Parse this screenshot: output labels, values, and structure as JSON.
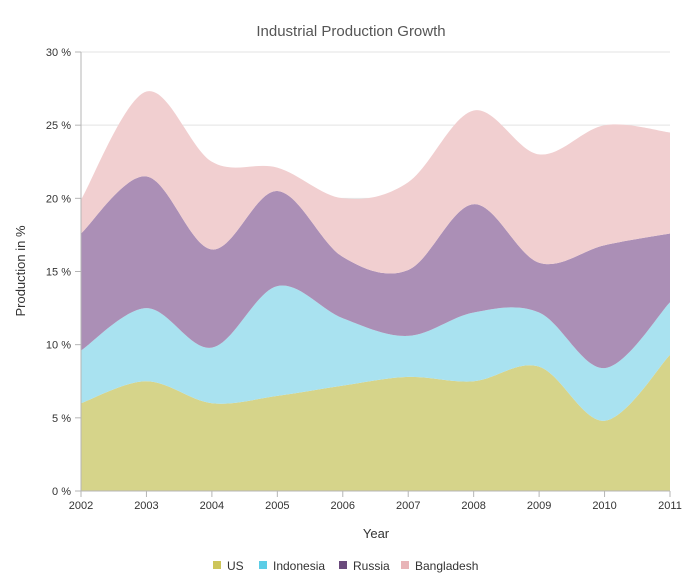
{
  "chart_data": {
    "type": "area",
    "subtype": "stacked-spline",
    "title": "Industrial Production Growth",
    "xlabel": "Year",
    "ylabel": "Production in %",
    "x": [
      "2002",
      "2003",
      "2004",
      "2005",
      "2006",
      "2007",
      "2008",
      "2009",
      "2010",
      "2011"
    ],
    "ylim": [
      0,
      30
    ],
    "y_ticks": [
      "0 %",
      "5 %",
      "10 %",
      "15 %",
      "20 %",
      "25 %",
      "30 %"
    ],
    "grid": true,
    "legend_position": "bottom",
    "series": [
      {
        "name": "US",
        "color": "#d6d48a",
        "values": [
          6.0,
          7.5,
          6.0,
          6.5,
          7.2,
          7.8,
          7.5,
          8.5,
          4.8,
          9.3
        ]
      },
      {
        "name": "Indonesia",
        "color": "#a9e2f0",
        "values": [
          3.6,
          5.0,
          3.8,
          7.5,
          4.6,
          2.8,
          4.7,
          3.7,
          3.6,
          3.6
        ]
      },
      {
        "name": "Russia",
        "color": "#ab8fb6",
        "values": [
          8.0,
          9.0,
          6.7,
          6.5,
          4.2,
          4.5,
          7.4,
          3.4,
          8.4,
          4.7
        ]
      },
      {
        "name": "Bangladesh",
        "color": "#f1cfd0",
        "values": [
          2.3,
          5.8,
          6.0,
          1.6,
          4.0,
          6.0,
          6.4,
          7.4,
          8.2,
          6.9
        ]
      }
    ],
    "legend_colors": [
      "#cdc55a",
      "#5ccde6",
      "#6a4a7c",
      "#e8b4b7"
    ]
  }
}
